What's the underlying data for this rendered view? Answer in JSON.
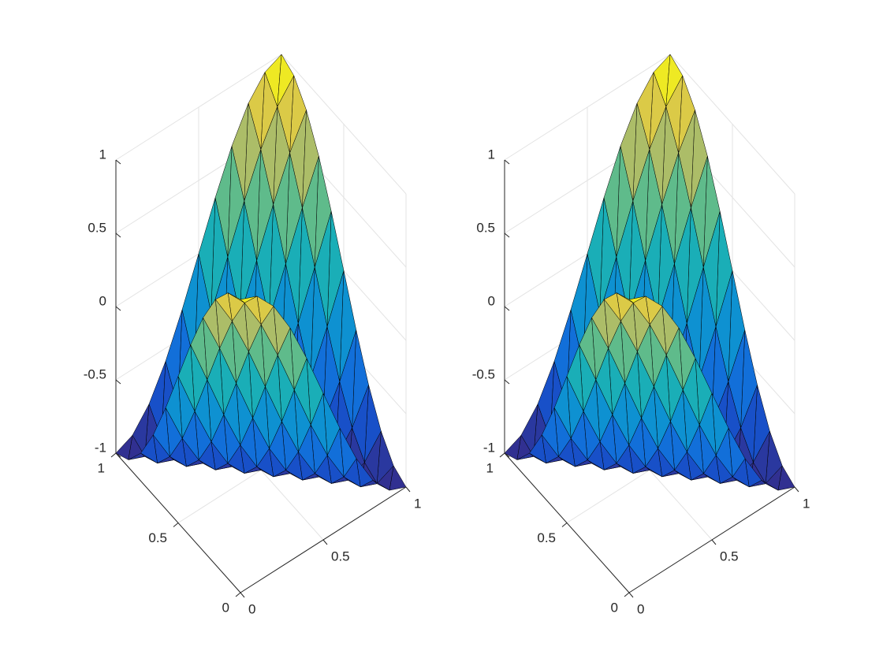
{
  "chart_data": [
    {
      "type": "surface",
      "x": [
        0,
        0.1,
        0.2,
        0.3,
        0.4,
        0.5,
        0.6,
        0.7,
        0.8,
        0.9,
        1
      ],
      "y": [
        0,
        0.1,
        0.2,
        0.3,
        0.4,
        0.5,
        0.6,
        0.7,
        0.8,
        0.9,
        1
      ],
      "z": [
        [
          1,
          0.95,
          0.81,
          0.59,
          0.31,
          0,
          -0.31,
          -0.59,
          -0.81,
          -0.95,
          -1
        ],
        [
          0.95,
          0.81,
          0.59,
          0.31,
          0,
          -0.31,
          -0.59,
          -0.81,
          -0.95,
          -1,
          -0.95
        ],
        [
          0.81,
          0.59,
          0.31,
          0,
          -0.31,
          -0.59,
          -0.81,
          -0.95,
          -1,
          -0.95,
          -0.81
        ],
        [
          0.59,
          0.31,
          0,
          -0.31,
          -0.59,
          -0.81,
          -0.95,
          -1,
          -0.95,
          -0.81,
          -0.59
        ],
        [
          0.31,
          0,
          -0.31,
          -0.59,
          -0.81,
          -0.95,
          -1,
          -0.95,
          -0.81,
          -0.59,
          -0.31
        ],
        [
          0,
          -0.31,
          -0.59,
          -0.81,
          -0.95,
          -1,
          -0.95,
          -0.81,
          -0.59,
          -0.31,
          0
        ],
        [
          -0.31,
          -0.59,
          -0.81,
          -0.95,
          -1,
          -0.95,
          -0.81,
          -0.59,
          -0.31,
          0,
          0.31
        ],
        [
          -0.59,
          -0.81,
          -0.95,
          -1,
          -0.95,
          -0.81,
          -0.59,
          -0.31,
          0,
          0.31,
          0.59
        ],
        [
          -0.81,
          -0.95,
          -1,
          -0.95,
          -0.81,
          -0.59,
          -0.31,
          0,
          0.31,
          0.59,
          0.81
        ],
        [
          -0.95,
          -1,
          -0.95,
          -0.81,
          -0.59,
          -0.31,
          0,
          0.31,
          0.59,
          0.81,
          0.95
        ],
        [
          -1,
          -0.95,
          -0.81,
          -0.59,
          -0.31,
          0,
          0.31,
          0.59,
          0.81,
          0.95,
          1
        ]
      ],
      "xlim": [
        0,
        1
      ],
      "ylim": [
        0,
        1
      ],
      "zlim": [
        -1,
        1
      ],
      "xticks": [
        0,
        0.5,
        1
      ],
      "yticks": [
        0,
        0.5,
        1
      ],
      "zticks": [
        -1,
        -0.5,
        0,
        0.5,
        1
      ],
      "grid": true,
      "edge_color": "#000000",
      "colormap": [
        "#352a87",
        "#0f5cdd",
        "#1481d6",
        "#06a4ca",
        "#2eb7a4",
        "#87bf77",
        "#d1bb59",
        "#f9fb0e"
      ]
    },
    {
      "type": "surface",
      "x": [
        0,
        0.1,
        0.2,
        0.3,
        0.4,
        0.5,
        0.6,
        0.7,
        0.8,
        0.9,
        1
      ],
      "y": [
        0,
        0.1,
        0.2,
        0.3,
        0.4,
        0.5,
        0.6,
        0.7,
        0.8,
        0.9,
        1
      ],
      "z": [
        [
          1,
          0.95,
          0.81,
          0.59,
          0.31,
          0,
          -0.31,
          -0.59,
          -0.81,
          -0.95,
          -1
        ],
        [
          0.95,
          0.81,
          0.59,
          0.31,
          0,
          -0.31,
          -0.59,
          -0.81,
          -0.95,
          -1,
          -0.95
        ],
        [
          0.81,
          0.59,
          0.31,
          0,
          -0.31,
          -0.59,
          -0.81,
          -0.95,
          -1,
          -0.95,
          -0.81
        ],
        [
          0.59,
          0.31,
          0,
          -0.31,
          -0.59,
          -0.81,
          -0.95,
          -1,
          -0.95,
          -0.81,
          -0.59
        ],
        [
          0.31,
          0,
          -0.31,
          -0.59,
          -0.81,
          -0.95,
          -1,
          -0.95,
          -0.81,
          -0.59,
          -0.31
        ],
        [
          0,
          -0.31,
          -0.59,
          -0.81,
          -0.95,
          -1,
          -0.95,
          -0.81,
          -0.59,
          -0.31,
          0
        ],
        [
          -0.31,
          -0.59,
          -0.81,
          -0.95,
          -1,
          -0.95,
          -0.81,
          -0.59,
          -0.31,
          0,
          0.31
        ],
        [
          -0.59,
          -0.81,
          -0.95,
          -1,
          -0.95,
          -0.81,
          -0.59,
          -0.31,
          0,
          0.31,
          0.59
        ],
        [
          -0.81,
          -0.95,
          -1,
          -0.95,
          -0.81,
          -0.59,
          -0.31,
          0,
          0.31,
          0.59,
          0.81
        ],
        [
          -0.95,
          -1,
          -0.95,
          -0.81,
          -0.59,
          -0.31,
          0,
          0.31,
          0.59,
          0.81,
          0.95
        ],
        [
          -1,
          -0.95,
          -0.81,
          -0.59,
          -0.31,
          0,
          0.31,
          0.59,
          0.81,
          0.95,
          1
        ]
      ],
      "xlim": [
        0,
        1
      ],
      "ylim": [
        0,
        1
      ],
      "zlim": [
        -1,
        1
      ],
      "xticks": [
        0,
        0.5,
        1
      ],
      "yticks": [
        0,
        0.5,
        1
      ],
      "zticks": [
        -1,
        -0.5,
        0,
        0.5,
        1
      ],
      "grid": true,
      "edge_color": "#000000",
      "colormap": [
        "#352a87",
        "#0f5cdd",
        "#1481d6",
        "#06a4ca",
        "#2eb7a4",
        "#87bf77",
        "#d1bb59",
        "#f9fb0e"
      ]
    }
  ]
}
